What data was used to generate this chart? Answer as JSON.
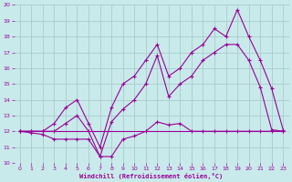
{
  "background_color": "#c8eaea",
  "grid_color": "#aacccc",
  "line_color": "#990099",
  "xlim": [
    -0.5,
    23.5
  ],
  "ylim": [
    10,
    20
  ],
  "xlabel": "Windchill (Refroidissement éolien,°C)",
  "xticks": [
    0,
    1,
    2,
    3,
    4,
    5,
    6,
    7,
    8,
    9,
    10,
    11,
    12,
    13,
    14,
    15,
    16,
    17,
    18,
    19,
    20,
    21,
    22,
    23
  ],
  "yticks": [
    10,
    11,
    12,
    13,
    14,
    15,
    16,
    17,
    18,
    19,
    20
  ],
  "series1_x": [
    0,
    1,
    2,
    3,
    4,
    5,
    6,
    7,
    8,
    9,
    10,
    11,
    12,
    13,
    14,
    15,
    16,
    17,
    18,
    19,
    20,
    21,
    22,
    23
  ],
  "series1_y": [
    12,
    12,
    12,
    12,
    12,
    12,
    12,
    12,
    12,
    12,
    12,
    12,
    12,
    12,
    12,
    12,
    12,
    12,
    12,
    12,
    12,
    12,
    12,
    12
  ],
  "series2_x": [
    0,
    1,
    2,
    3,
    4,
    5,
    6,
    7,
    8,
    9,
    10,
    11,
    12,
    13,
    14,
    15,
    16,
    17,
    18,
    19,
    20,
    21,
    22,
    23
  ],
  "series2_y": [
    12.0,
    11.9,
    11.8,
    11.5,
    11.5,
    11.5,
    11.5,
    10.4,
    10.4,
    11.5,
    11.7,
    12.0,
    12.6,
    12.4,
    12.5,
    12.0,
    12.0,
    12.0,
    12.0,
    12.0,
    12.0,
    12.0,
    12.0,
    12.0
  ],
  "series3_x": [
    0,
    1,
    2,
    3,
    4,
    5,
    6,
    7,
    8,
    9,
    10,
    11,
    12,
    13,
    14,
    15,
    16,
    17,
    18,
    19,
    20,
    21,
    22,
    23
  ],
  "series3_y": [
    12.0,
    12.0,
    12.0,
    12.0,
    12.5,
    13.0,
    12.0,
    10.4,
    12.6,
    13.4,
    14.0,
    15.0,
    16.8,
    14.2,
    15.0,
    15.5,
    16.5,
    17.0,
    17.5,
    17.5,
    16.5,
    14.8,
    12.1,
    12.0
  ],
  "series4_x": [
    0,
    1,
    2,
    3,
    4,
    5,
    6,
    7,
    8,
    9,
    10,
    11,
    12,
    13,
    14,
    15,
    16,
    17,
    18,
    19,
    20,
    21,
    22,
    23
  ],
  "series4_y": [
    12.0,
    12.0,
    12.0,
    12.5,
    13.5,
    14.0,
    12.5,
    11.0,
    13.5,
    15.0,
    15.5,
    16.5,
    17.5,
    15.5,
    16.0,
    17.0,
    17.5,
    18.5,
    18.0,
    19.7,
    18.0,
    16.5,
    14.7,
    12.1
  ]
}
